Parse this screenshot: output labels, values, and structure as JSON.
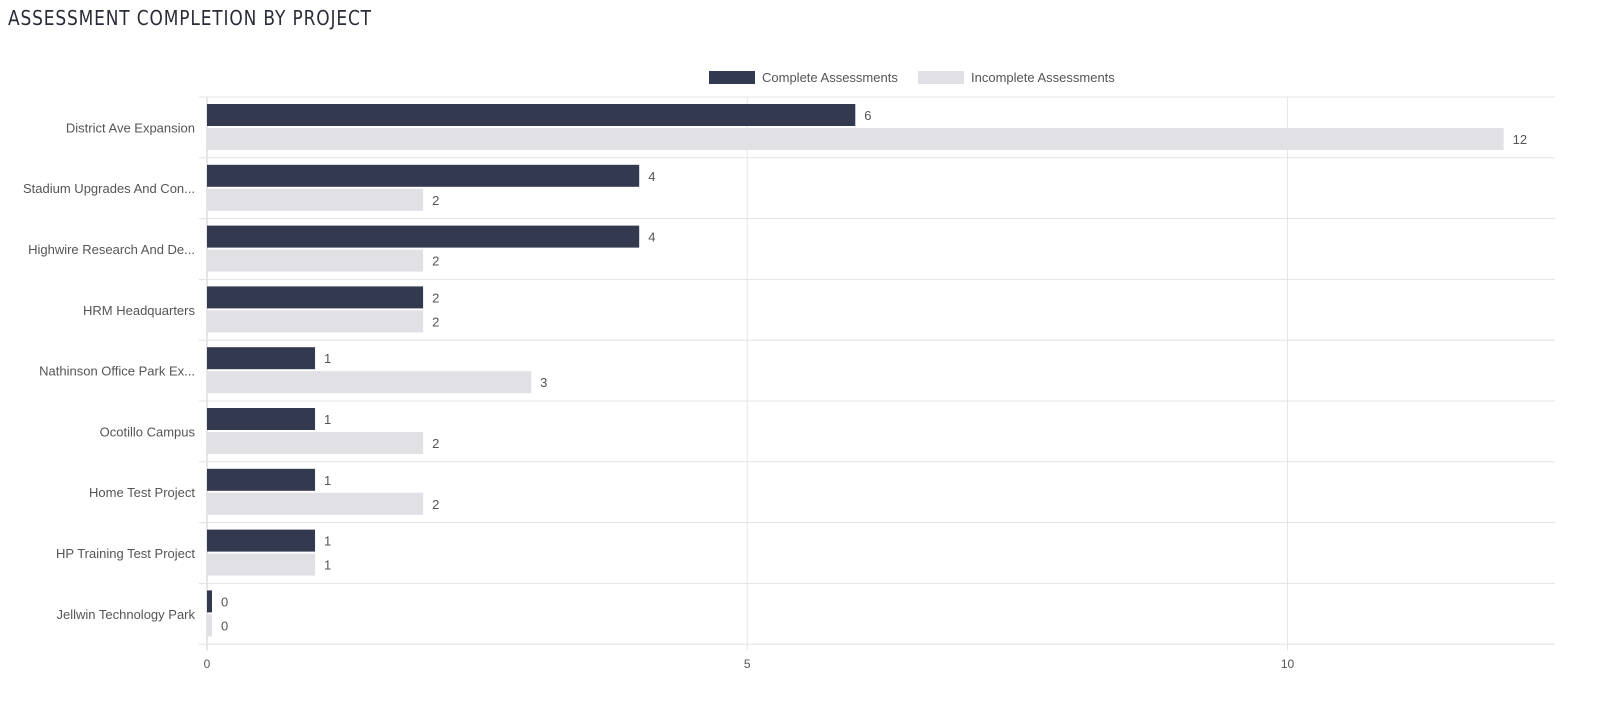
{
  "chart_data": {
    "type": "bar",
    "orientation": "horizontal",
    "title": "ASSESSMENT COMPLETION BY PROJECT",
    "categories": [
      "District Ave Expansion",
      "Stadium Upgrades And Con...",
      "Highwire Research And De...",
      "HRM Headquarters",
      "Nathinson Office Park Ex...",
      "Ocotillo Campus",
      "Home Test Project",
      "HP Training Test Project",
      "Jellwin Technology Park"
    ],
    "series": [
      {
        "name": "Complete Assessments",
        "color": "#333a50",
        "values": [
          6,
          4,
          4,
          2,
          1,
          1,
          1,
          1,
          0
        ]
      },
      {
        "name": "Incomplete Assessments",
        "color": "#e0e0e5",
        "values": [
          12,
          2,
          2,
          2,
          3,
          2,
          2,
          1,
          0
        ]
      }
    ],
    "xticks": [
      "0",
      "5",
      "10"
    ],
    "xlim": [
      0,
      12.5
    ],
    "xlabel": "",
    "ylabel": "",
    "grid": true,
    "legend": "top-center"
  }
}
